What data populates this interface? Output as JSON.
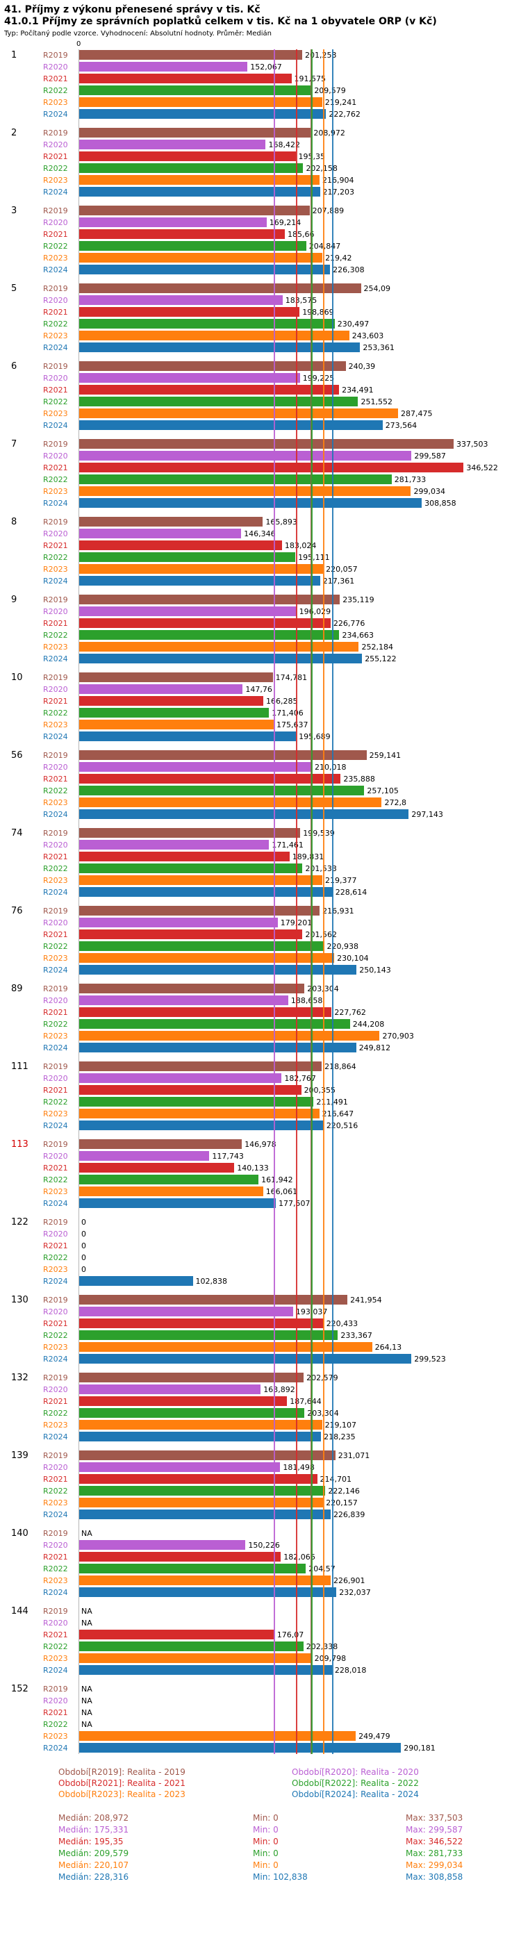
{
  "axis": {
    "zero_label": "0"
  },
  "stats_labels": {
    "median": "Medián",
    "min": "Min",
    "max": "Max"
  },
  "highlight_color": "#d40000",
  "years": [
    {
      "id": "R2019",
      "color": "#A0584C",
      "legend_label": "Období[R2019]: Realita - 2019",
      "median": 208.972,
      "stats": {
        "median": "208,972",
        "min": "0",
        "max": "337,503"
      }
    },
    {
      "id": "R2020",
      "color": "#BA5FD3",
      "legend_label": "Období[R2020]: Realita - 2020",
      "median": 175.331,
      "stats": {
        "median": "175,331",
        "min": "0",
        "max": "299,587"
      }
    },
    {
      "id": "R2021",
      "color": "#D62B2B",
      "legend_label": "Období[R2021]: Realita - 2021",
      "median": 195.35,
      "stats": {
        "median": "195,35",
        "min": "0",
        "max": "346,522"
      }
    },
    {
      "id": "R2022",
      "color": "#2CA02C",
      "legend_label": "Období[R2022]: Realita - 2022",
      "median": 209.579,
      "stats": {
        "median": "209,579",
        "min": "0",
        "max": "281,733"
      }
    },
    {
      "id": "R2023",
      "color": "#FF7F0E",
      "legend_label": "Období[R2023]: Realita - 2023",
      "median": 220.107,
      "stats": {
        "median": "220,107",
        "min": "0",
        "max": "299,034"
      }
    },
    {
      "id": "R2024",
      "color": "#1F77B4",
      "legend_label": "Období[R2024]: Realita - 2024",
      "median": 228.316,
      "stats": {
        "median": "228,316",
        "min": "102,838",
        "max": "308,858"
      }
    }
  ],
  "chart_data": {
    "type": "bar",
    "orientation": "horizontal",
    "title": "41. Příjmy z výkonu přenesené správy v tis. Kč",
    "subtitle": "41.0.1 Příjmy ze správních poplatků celkem v tis. Kč na 1 obyvatele ORP (v Kč)",
    "note": "Typ: Počítaný podle vzorce. Vyhodnocení: Absolutní hodnoty. Průměr: Medián",
    "xlim": [
      0,
      350
    ],
    "grid": false,
    "legend_position": "bottom",
    "series_order": [
      "R2019",
      "R2020",
      "R2021",
      "R2022",
      "R2023",
      "R2024"
    ],
    "groups": [
      {
        "label": "1",
        "values": [
          {
            "v": 201.253,
            "t": "201,253"
          },
          {
            "v": 152.067,
            "t": "152,067"
          },
          {
            "v": 191.575,
            "t": "191,575"
          },
          {
            "v": 209.579,
            "t": "209,579"
          },
          {
            "v": 219.241,
            "t": "219,241"
          },
          {
            "v": 222.762,
            "t": "222,762"
          }
        ]
      },
      {
        "label": "2",
        "values": [
          {
            "v": 208.972,
            "t": "208,972"
          },
          {
            "v": 168.422,
            "t": "168,422"
          },
          {
            "v": 195.35,
            "t": "195,35"
          },
          {
            "v": 202.158,
            "t": "202,158"
          },
          {
            "v": 216.904,
            "t": "216,904"
          },
          {
            "v": 217.203,
            "t": "217,203"
          }
        ]
      },
      {
        "label": "3",
        "values": [
          {
            "v": 207.889,
            "t": "207,889"
          },
          {
            "v": 169.214,
            "t": "169,214"
          },
          {
            "v": 185.66,
            "t": "185,66"
          },
          {
            "v": 204.847,
            "t": "204,847"
          },
          {
            "v": 219.42,
            "t": "219,42"
          },
          {
            "v": 226.308,
            "t": "226,308"
          }
        ]
      },
      {
        "label": "5",
        "values": [
          {
            "v": 254.09,
            "t": "254,09"
          },
          {
            "v": 183.575,
            "t": "183,575"
          },
          {
            "v": 198.869,
            "t": "198,869"
          },
          {
            "v": 230.497,
            "t": "230,497"
          },
          {
            "v": 243.603,
            "t": "243,603"
          },
          {
            "v": 253.361,
            "t": "253,361"
          }
        ]
      },
      {
        "label": "6",
        "values": [
          {
            "v": 240.39,
            "t": "240,39"
          },
          {
            "v": 199.225,
            "t": "199,225"
          },
          {
            "v": 234.491,
            "t": "234,491"
          },
          {
            "v": 251.552,
            "t": "251,552"
          },
          {
            "v": 287.475,
            "t": "287,475"
          },
          {
            "v": 273.564,
            "t": "273,564"
          }
        ]
      },
      {
        "label": "7",
        "values": [
          {
            "v": 337.503,
            "t": "337,503"
          },
          {
            "v": 299.587,
            "t": "299,587"
          },
          {
            "v": 346.522,
            "t": "346,522"
          },
          {
            "v": 281.733,
            "t": "281,733"
          },
          {
            "v": 299.034,
            "t": "299,034"
          },
          {
            "v": 308.858,
            "t": "308,858"
          }
        ]
      },
      {
        "label": "8",
        "values": [
          {
            "v": 165.893,
            "t": "165,893"
          },
          {
            "v": 146.346,
            "t": "146,346"
          },
          {
            "v": 183.024,
            "t": "183,024"
          },
          {
            "v": 195.111,
            "t": "195,111"
          },
          {
            "v": 220.057,
            "t": "220,057"
          },
          {
            "v": 217.361,
            "t": "217,361"
          }
        ]
      },
      {
        "label": "9",
        "values": [
          {
            "v": 235.119,
            "t": "235,119"
          },
          {
            "v": 196.029,
            "t": "196,029"
          },
          {
            "v": 226.776,
            "t": "226,776"
          },
          {
            "v": 234.663,
            "t": "234,663"
          },
          {
            "v": 252.184,
            "t": "252,184"
          },
          {
            "v": 255.122,
            "t": "255,122"
          }
        ]
      },
      {
        "label": "10",
        "values": [
          {
            "v": 174.781,
            "t": "174,781"
          },
          {
            "v": 147.76,
            "t": "147,76"
          },
          {
            "v": 166.285,
            "t": "166,285"
          },
          {
            "v": 171.406,
            "t": "171,406"
          },
          {
            "v": 175.637,
            "t": "175,637"
          },
          {
            "v": 195.689,
            "t": "195,689"
          }
        ]
      },
      {
        "label": "56",
        "values": [
          {
            "v": 259.141,
            "t": "259,141"
          },
          {
            "v": 210.018,
            "t": "210,018"
          },
          {
            "v": 235.888,
            "t": "235,888"
          },
          {
            "v": 257.105,
            "t": "257,105"
          },
          {
            "v": 272.8,
            "t": "272,8"
          },
          {
            "v": 297.143,
            "t": "297,143"
          }
        ]
      },
      {
        "label": "74",
        "values": [
          {
            "v": 199.539,
            "t": "199,539"
          },
          {
            "v": 171.461,
            "t": "171,461"
          },
          {
            "v": 189.831,
            "t": "189,831"
          },
          {
            "v": 201.533,
            "t": "201,533"
          },
          {
            "v": 219.377,
            "t": "219,377"
          },
          {
            "v": 228.614,
            "t": "228,614"
          }
        ]
      },
      {
        "label": "76",
        "values": [
          {
            "v": 216.931,
            "t": "216,931"
          },
          {
            "v": 179.201,
            "t": "179,201"
          },
          {
            "v": 201.562,
            "t": "201,562"
          },
          {
            "v": 220.938,
            "t": "220,938"
          },
          {
            "v": 230.104,
            "t": "230,104"
          },
          {
            "v": 250.143,
            "t": "250,143"
          }
        ]
      },
      {
        "label": "89",
        "values": [
          {
            "v": 203.304,
            "t": "203,304"
          },
          {
            "v": 188.658,
            "t": "188,658"
          },
          {
            "v": 227.762,
            "t": "227,762"
          },
          {
            "v": 244.208,
            "t": "244,208"
          },
          {
            "v": 270.903,
            "t": "270,903"
          },
          {
            "v": 249.812,
            "t": "249,812"
          }
        ]
      },
      {
        "label": "111",
        "values": [
          {
            "v": 218.864,
            "t": "218,864"
          },
          {
            "v": 182.767,
            "t": "182,767"
          },
          {
            "v": 200.355,
            "t": "200,355"
          },
          {
            "v": 211.491,
            "t": "211,491"
          },
          {
            "v": 216.647,
            "t": "216,647"
          },
          {
            "v": 220.516,
            "t": "220,516"
          }
        ]
      },
      {
        "label": "113",
        "highlight": true,
        "values": [
          {
            "v": 146.978,
            "t": "146,978"
          },
          {
            "v": 117.743,
            "t": "117,743"
          },
          {
            "v": 140.133,
            "t": "140,133"
          },
          {
            "v": 161.942,
            "t": "161,942"
          },
          {
            "v": 166.061,
            "t": "166,061"
          },
          {
            "v": 177.507,
            "t": "177,507"
          }
        ]
      },
      {
        "label": "122",
        "values": [
          {
            "v": 0,
            "t": "0"
          },
          {
            "v": 0,
            "t": "0"
          },
          {
            "v": 0,
            "t": "0"
          },
          {
            "v": 0,
            "t": "0"
          },
          {
            "v": 0,
            "t": "0"
          },
          {
            "v": 102.838,
            "t": "102,838"
          }
        ]
      },
      {
        "label": "130",
        "values": [
          {
            "v": 241.954,
            "t": "241,954"
          },
          {
            "v": 193.037,
            "t": "193,037"
          },
          {
            "v": 220.433,
            "t": "220,433"
          },
          {
            "v": 233.367,
            "t": "233,367"
          },
          {
            "v": 264.13,
            "t": "264,13"
          },
          {
            "v": 299.523,
            "t": "299,523"
          }
        ]
      },
      {
        "label": "132",
        "values": [
          {
            "v": 202.579,
            "t": "202,579"
          },
          {
            "v": 163.892,
            "t": "163,892"
          },
          {
            "v": 187.644,
            "t": "187,644"
          },
          {
            "v": 203.304,
            "t": "203,304"
          },
          {
            "v": 219.107,
            "t": "219,107"
          },
          {
            "v": 218.235,
            "t": "218,235"
          }
        ]
      },
      {
        "label": "139",
        "values": [
          {
            "v": 231.071,
            "t": "231,071"
          },
          {
            "v": 181.498,
            "t": "181,498"
          },
          {
            "v": 214.701,
            "t": "214,701"
          },
          {
            "v": 222.146,
            "t": "222,146"
          },
          {
            "v": 220.157,
            "t": "220,157"
          },
          {
            "v": 226.839,
            "t": "226,839"
          }
        ]
      },
      {
        "label": "140",
        "values": [
          {
            "v": null,
            "t": "NA"
          },
          {
            "v": 150.226,
            "t": "150,226"
          },
          {
            "v": 182.066,
            "t": "182,066"
          },
          {
            "v": 204.57,
            "t": "204,57"
          },
          {
            "v": 226.901,
            "t": "226,901"
          },
          {
            "v": 232.037,
            "t": "232,037"
          }
        ]
      },
      {
        "label": "144",
        "values": [
          {
            "v": null,
            "t": "NA"
          },
          {
            "v": null,
            "t": "NA"
          },
          {
            "v": 176.07,
            "t": "176,07"
          },
          {
            "v": 202.338,
            "t": "202,338"
          },
          {
            "v": 209.798,
            "t": "209,798"
          },
          {
            "v": 228.018,
            "t": "228,018"
          }
        ]
      },
      {
        "label": "152",
        "values": [
          {
            "v": null,
            "t": "NA"
          },
          {
            "v": null,
            "t": "NA"
          },
          {
            "v": null,
            "t": "NA"
          },
          {
            "v": null,
            "t": "NA"
          },
          {
            "v": 249.479,
            "t": "249,479"
          },
          {
            "v": 290.181,
            "t": "290,181"
          }
        ]
      }
    ]
  }
}
